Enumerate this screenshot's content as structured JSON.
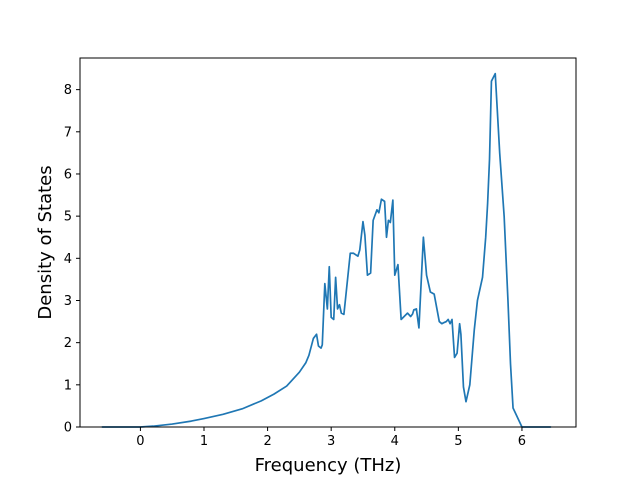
{
  "chart_data": {
    "type": "line",
    "xlabel": "Frequency (THz)",
    "ylabel": "Density of States",
    "xlim": [
      -0.95,
      6.85
    ],
    "ylim": [
      0,
      8.75
    ],
    "xticks": [
      0,
      1,
      2,
      3,
      4,
      5,
      6
    ],
    "yticks": [
      0,
      1,
      2,
      3,
      4,
      5,
      6,
      7,
      8
    ],
    "grid": false,
    "legend": "none",
    "series": [
      {
        "color": "#1f77b4",
        "x": [
          -0.6,
          -0.3,
          0,
          0.2,
          0.5,
          0.8,
          1.0,
          1.3,
          1.6,
          1.9,
          2.1,
          2.3,
          2.5,
          2.6,
          2.65,
          2.72,
          2.77,
          2.8,
          2.84,
          2.86,
          2.9,
          2.94,
          2.97,
          3.0,
          3.04,
          3.07,
          3.1,
          3.13,
          3.16,
          3.2,
          3.3,
          3.35,
          3.42,
          3.45,
          3.5,
          3.53,
          3.57,
          3.62,
          3.66,
          3.72,
          3.75,
          3.79,
          3.84,
          3.87,
          3.9,
          3.93,
          3.97,
          4.0,
          4.05,
          4.1,
          4.2,
          4.25,
          4.28,
          4.3,
          4.34,
          4.38,
          4.45,
          4.5,
          4.56,
          4.62,
          4.7,
          4.74,
          4.78,
          4.81,
          4.84,
          4.87,
          4.9,
          4.94,
          4.98,
          5.02,
          5.04,
          5.08,
          5.12,
          5.18,
          5.25,
          5.3,
          5.38,
          5.43,
          5.46,
          5.49,
          5.52,
          5.58,
          5.65,
          5.72,
          5.78,
          5.82,
          5.86,
          6.0,
          6.2,
          6.45
        ],
        "y": [
          0,
          0,
          0,
          0.02,
          0.07,
          0.14,
          0.2,
          0.3,
          0.43,
          0.62,
          0.78,
          0.97,
          1.3,
          1.52,
          1.7,
          2.1,
          2.2,
          1.92,
          1.87,
          1.95,
          3.4,
          2.8,
          3.8,
          2.6,
          2.55,
          3.55,
          2.8,
          2.9,
          2.7,
          2.67,
          4.12,
          4.12,
          4.05,
          4.2,
          4.87,
          4.55,
          3.6,
          3.65,
          4.9,
          5.15,
          5.08,
          5.4,
          5.35,
          4.5,
          4.9,
          4.85,
          5.38,
          3.6,
          3.85,
          2.55,
          2.7,
          2.62,
          2.68,
          2.78,
          2.8,
          2.35,
          4.5,
          3.6,
          3.2,
          3.15,
          2.5,
          2.45,
          2.48,
          2.5,
          2.55,
          2.45,
          2.55,
          1.65,
          1.75,
          2.45,
          2.2,
          0.95,
          0.6,
          1.0,
          2.3,
          3.0,
          3.55,
          4.5,
          5.3,
          6.35,
          8.2,
          8.38,
          6.5,
          5.0,
          3.0,
          1.5,
          0.45,
          0,
          0,
          0
        ]
      }
    ]
  }
}
